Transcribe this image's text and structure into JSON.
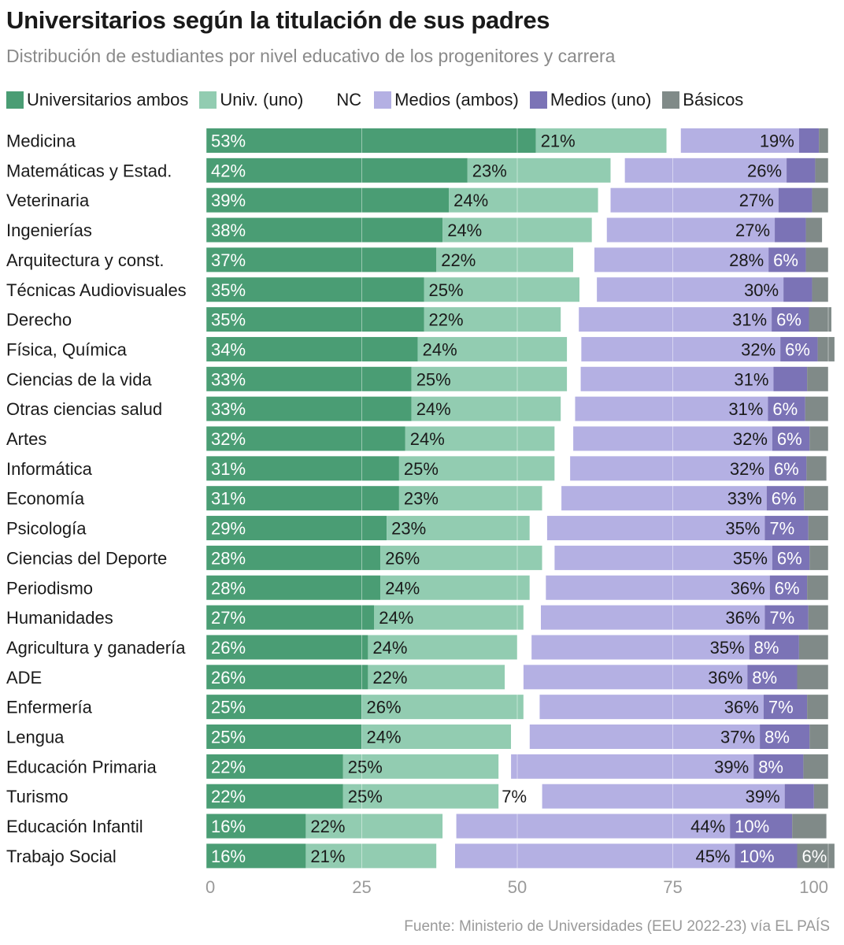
{
  "title": "Universitarios según la titulación de sus padres",
  "subtitle": "Distribución de estudiantes por nivel educativo de los progenitores y carrera",
  "source": "Fuente: Ministerio de Universidades (EEU 2022-23) vía EL PAÍS",
  "chart_data": {
    "type": "bar",
    "orientation": "horizontal",
    "stacked": true,
    "xlim": [
      0,
      100
    ],
    "xticks": [
      0,
      25,
      50,
      75,
      100
    ],
    "legend_position": "top",
    "grid": true,
    "series": [
      {
        "name": "Universitarios ambos",
        "color": "#4a9d74",
        "label_color": "#ffffff"
      },
      {
        "name": "Univ. (uno)",
        "color": "#92ccb1",
        "label_color": "#1a1a1a"
      },
      {
        "name": "NC",
        "color": "#ffffff",
        "label_color": "#1a1a1a"
      },
      {
        "name": "Medios (ambos)",
        "color": "#b4b0e3",
        "label_color": "#1a1a1a"
      },
      {
        "name": "Medios (uno)",
        "color": "#7b73b6",
        "label_color": "#ffffff"
      },
      {
        "name": "Básicos",
        "color": "#808a88",
        "label_color": "#ffffff"
      }
    ],
    "rows": [
      {
        "category": "Medicina",
        "values": [
          53,
          21,
          2.3,
          19,
          3.2,
          1.5
        ],
        "labels": [
          "53%",
          "21%",
          "",
          "19%",
          "",
          ""
        ]
      },
      {
        "category": "Matemáticas y Estad.",
        "values": [
          42,
          23,
          2.3,
          26,
          4.6,
          2.1
        ],
        "labels": [
          "42%",
          "23%",
          "",
          "26%",
          "",
          ""
        ]
      },
      {
        "category": "Veterinaria",
        "values": [
          39,
          24,
          2,
          27,
          5.4,
          2.6
        ],
        "labels": [
          "39%",
          "24%",
          "",
          "27%",
          "",
          ""
        ]
      },
      {
        "category": "Ingenierías",
        "values": [
          38,
          24,
          2.4,
          27,
          5,
          2.6
        ],
        "labels": [
          "38%",
          "24%",
          "",
          "27%",
          "",
          ""
        ]
      },
      {
        "category": "Arquitectura y const.",
        "values": [
          37,
          22,
          3.4,
          28,
          6,
          3.6
        ],
        "labels": [
          "37%",
          "22%",
          "",
          "28%",
          "6%",
          ""
        ]
      },
      {
        "category": "Técnicas Audiovisuales",
        "values": [
          35,
          25,
          2.8,
          30,
          4.6,
          2.6
        ],
        "labels": [
          "35%",
          "25%",
          "",
          "30%",
          "",
          ""
        ]
      },
      {
        "category": "Derecho",
        "values": [
          35,
          22,
          2.9,
          31,
          6,
          3.6
        ],
        "labels": [
          "35%",
          "22%",
          "",
          "31%",
          "6%",
          ""
        ]
      },
      {
        "category": "Física, Química",
        "values": [
          34,
          24,
          2.3,
          32,
          6,
          2.7
        ],
        "labels": [
          "34%",
          "24%",
          "",
          "32%",
          "6%",
          ""
        ]
      },
      {
        "category": "Ciencias de la vida",
        "values": [
          33,
          25,
          2.2,
          31,
          5.4,
          3.4
        ],
        "labels": [
          "33%",
          "25%",
          "",
          "31%",
          "",
          ""
        ]
      },
      {
        "category": "Otras ciencias salud",
        "values": [
          33,
          24,
          2.3,
          31,
          6,
          3.7
        ],
        "labels": [
          "33%",
          "24%",
          "",
          "31%",
          "6%",
          ""
        ]
      },
      {
        "category": "Artes",
        "values": [
          32,
          24,
          3,
          32,
          6,
          3
        ],
        "labels": [
          "32%",
          "24%",
          "",
          "32%",
          "6%",
          ""
        ]
      },
      {
        "category": "Informática",
        "values": [
          31,
          25,
          2.5,
          32,
          6,
          3.2
        ],
        "labels": [
          "31%",
          "25%",
          "",
          "32%",
          "6%",
          ""
        ]
      },
      {
        "category": "Economía",
        "values": [
          31,
          23,
          3.1,
          33,
          6,
          3.9
        ],
        "labels": [
          "31%",
          "23%",
          "",
          "33%",
          "6%",
          ""
        ]
      },
      {
        "category": "Psicología",
        "values": [
          29,
          23,
          2.8,
          35,
          7,
          3.2
        ],
        "labels": [
          "29%",
          "23%",
          "",
          "35%",
          "7%",
          ""
        ]
      },
      {
        "category": "Ciencias del Deporte",
        "values": [
          28,
          26,
          2,
          35,
          6,
          3
        ],
        "labels": [
          "28%",
          "26%",
          "",
          "35%",
          "6%",
          ""
        ]
      },
      {
        "category": "Periodismo",
        "values": [
          28,
          24,
          2.6,
          36,
          6,
          3.4
        ],
        "labels": [
          "28%",
          "24%",
          "",
          "36%",
          "6%",
          ""
        ]
      },
      {
        "category": "Humanidades",
        "values": [
          27,
          24,
          2.8,
          36,
          7,
          3.2
        ],
        "labels": [
          "27%",
          "24%",
          "",
          "36%",
          "7%",
          ""
        ]
      },
      {
        "category": "Agricultura y ganadería",
        "values": [
          26,
          24,
          2.3,
          35,
          8,
          4.7
        ],
        "labels": [
          "26%",
          "24%",
          "",
          "35%",
          "8%",
          ""
        ]
      },
      {
        "category": "ADE",
        "values": [
          26,
          22,
          3,
          36,
          8,
          5
        ],
        "labels": [
          "26%",
          "22%",
          "",
          "36%",
          "8%",
          ""
        ]
      },
      {
        "category": "Enfermería",
        "values": [
          25,
          26,
          2.6,
          36,
          7,
          3.4
        ],
        "labels": [
          "25%",
          "26%",
          "",
          "36%",
          "7%",
          ""
        ]
      },
      {
        "category": "Lengua",
        "values": [
          25,
          24,
          3,
          37,
          8,
          3
        ],
        "labels": [
          "25%",
          "24%",
          "",
          "37%",
          "8%",
          ""
        ]
      },
      {
        "category": "Educación Primaria",
        "values": [
          22,
          25,
          2,
          39,
          8,
          4
        ],
        "labels": [
          "22%",
          "25%",
          "",
          "39%",
          "8%",
          ""
        ]
      },
      {
        "category": "Turismo",
        "values": [
          22,
          25,
          7,
          39,
          4.7,
          2.3
        ],
        "labels": [
          "22%",
          "25%",
          "7%",
          "39%",
          "",
          ""
        ]
      },
      {
        "category": "Educación Infantil",
        "values": [
          16,
          22,
          2.2,
          44,
          10,
          5.5
        ],
        "labels": [
          "16%",
          "22%",
          "",
          "44%",
          "10%",
          ""
        ]
      },
      {
        "category": "Trabajo Social",
        "values": [
          16,
          21,
          3,
          45,
          10,
          6
        ],
        "labels": [
          "16%",
          "21%",
          "",
          "45%",
          "10%",
          "6%"
        ]
      }
    ]
  }
}
